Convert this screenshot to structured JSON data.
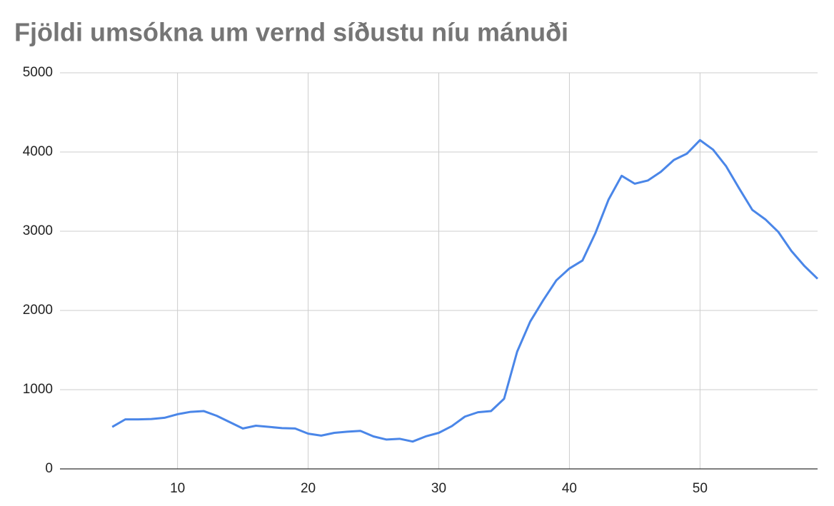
{
  "chart_data": {
    "type": "line",
    "title": "Fjöldi umsókna um vernd síðustu níu mánuði",
    "x": [
      5,
      6,
      7,
      8,
      9,
      10,
      11,
      12,
      13,
      14,
      15,
      16,
      17,
      18,
      19,
      20,
      21,
      22,
      23,
      24,
      25,
      26,
      27,
      28,
      29,
      30,
      31,
      32,
      33,
      34,
      35,
      36,
      37,
      38,
      39,
      40,
      41,
      42,
      43,
      44,
      45,
      46,
      47,
      48,
      49,
      50,
      51,
      52,
      53,
      54,
      55,
      56,
      57,
      58,
      59
    ],
    "series": [
      {
        "color": "#4a86e8",
        "values": [
          530,
          625,
          625,
          630,
          645,
          690,
          720,
          730,
          670,
          590,
          510,
          545,
          530,
          515,
          510,
          445,
          420,
          455,
          470,
          480,
          410,
          370,
          380,
          345,
          410,
          455,
          540,
          660,
          715,
          730,
          885,
          1480,
          1860,
          2130,
          2380,
          2530,
          2630,
          2980,
          3400,
          3700,
          3600,
          3640,
          3750,
          3900,
          3980,
          4150,
          4030,
          3820,
          3540,
          3270,
          3150,
          2990,
          2750,
          2560,
          2400
        ]
      }
    ],
    "xlim": [
      1,
      59
    ],
    "xticks": [
      10,
      20,
      30,
      40,
      50
    ],
    "ylim": [
      0,
      5000
    ],
    "yticks": [
      0,
      1000,
      2000,
      3000,
      4000,
      5000
    ],
    "grid": true
  }
}
